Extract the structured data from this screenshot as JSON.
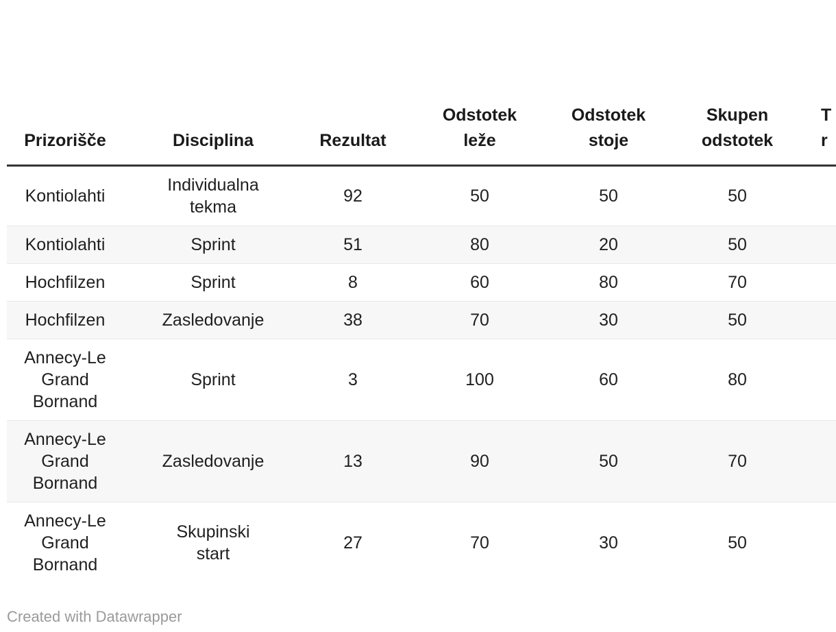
{
  "table": {
    "headers": [
      {
        "label": "Prizorišče"
      },
      {
        "label": "Disciplina"
      },
      {
        "label": "Rezultat"
      },
      {
        "label": "Odstotek\nleže"
      },
      {
        "label": "Odstotek\nstoje"
      },
      {
        "label": "Skupen\nodstotek"
      },
      {
        "label": "T\nr"
      }
    ],
    "rows": [
      {
        "cells": [
          "Kontiolahti",
          "Individualna\ntekma",
          "92",
          "50",
          "50",
          "50"
        ]
      },
      {
        "cells": [
          "Kontiolahti",
          "Sprint",
          "51",
          "80",
          "20",
          "50"
        ]
      },
      {
        "cells": [
          "Hochfilzen",
          "Sprint",
          "8",
          "60",
          "80",
          "70"
        ]
      },
      {
        "cells": [
          "Hochfilzen",
          "Zasledovanje",
          "38",
          "70",
          "30",
          "50"
        ]
      },
      {
        "cells": [
          "Annecy-Le\nGrand\nBornand",
          "Sprint",
          "3",
          "100",
          "60",
          "80"
        ]
      },
      {
        "cells": [
          "Annecy-Le\nGrand\nBornand",
          "Zasledovanje",
          "13",
          "90",
          "50",
          "70"
        ]
      },
      {
        "cells": [
          "Annecy-Le\nGrand\nBornand",
          "Skupinski\nstart",
          "27",
          "70",
          "30",
          "50"
        ]
      }
    ]
  },
  "footer": {
    "credit": "Created with Datawrapper"
  },
  "colors": {
    "text": "#1f1f1f",
    "header_text": "#1a1a1a",
    "header_rule": "#333333",
    "row_border": "#e8e8e8",
    "zebra": "#f7f7f7",
    "credit_text": "#9a9a9a",
    "background": "#ffffff"
  },
  "chart_data": {
    "type": "table",
    "columns": [
      "Prizorišče",
      "Disciplina",
      "Rezultat",
      "Odstotek leže",
      "Odstotek stoje",
      "Skupen odstotek"
    ],
    "rows": [
      [
        "Kontiolahti",
        "Individualna tekma",
        92,
        50,
        50,
        50
      ],
      [
        "Kontiolahti",
        "Sprint",
        51,
        80,
        20,
        50
      ],
      [
        "Hochfilzen",
        "Sprint",
        8,
        60,
        80,
        70
      ],
      [
        "Hochfilzen",
        "Zasledovanje",
        38,
        70,
        30,
        50
      ],
      [
        "Annecy-Le Grand Bornand",
        "Sprint",
        3,
        100,
        60,
        80
      ],
      [
        "Annecy-Le Grand Bornand",
        "Zasledovanje",
        13,
        90,
        50,
        70
      ],
      [
        "Annecy-Le Grand Bornand",
        "Skupinski start",
        27,
        70,
        30,
        50
      ]
    ],
    "notes": "Seventh column clipped at right edge; only letters 'T' (line 1) and 'r' (line 2) of its header are visible. Credit line: Created with Datawrapper."
  }
}
